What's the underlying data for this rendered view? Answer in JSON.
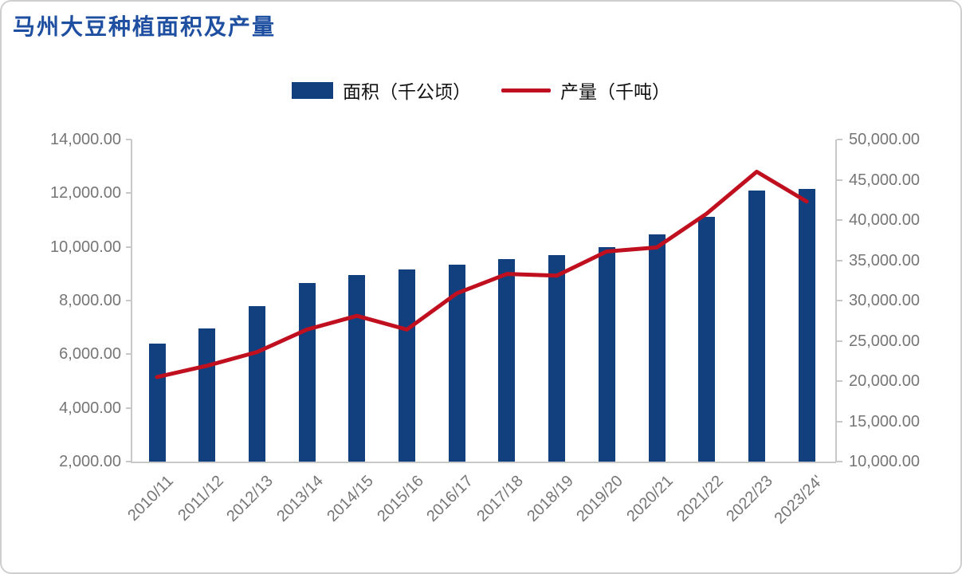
{
  "chart_data": {
    "type": "bar+line",
    "title": "马州大豆种植面积及产量",
    "title_color": "#1E4FA0",
    "categories": [
      "2010/11",
      "2011/12",
      "2012/13",
      "2013/14",
      "2014/15",
      "2015/16",
      "2016/17",
      "2017/18",
      "2018/19",
      "2019/20",
      "2020/21",
      "2021/22",
      "2022/23",
      "2023/24'"
    ],
    "series": [
      {
        "name": "面积（千公顷）",
        "type": "bar",
        "axis": "left",
        "color": "#12407E",
        "values": [
          6400,
          6950,
          7800,
          8650,
          8950,
          9150,
          9330,
          9550,
          9700,
          10000,
          10480,
          11120,
          12100,
          12160
        ]
      },
      {
        "name": "产量（千吨）",
        "type": "line",
        "axis": "right",
        "color": "#C00F1F",
        "values": [
          20500,
          21900,
          23600,
          26400,
          28100,
          26400,
          30900,
          33300,
          33100,
          36100,
          36600,
          40800,
          46000,
          42300
        ]
      }
    ],
    "left_axis": {
      "min": 2000,
      "max": 14000,
      "step": 2000,
      "tick_labels": [
        "2,000.00",
        "4,000.00",
        "6,000.00",
        "8,000.00",
        "10,000.00",
        "12,000.00",
        "14,000.00"
      ]
    },
    "right_axis": {
      "min": 10000,
      "max": 50000,
      "step": 5000,
      "tick_labels": [
        "10,000.00",
        "15,000.00",
        "20,000.00",
        "25,000.00",
        "30,000.00",
        "35,000.00",
        "40,000.00",
        "45,000.00",
        "50,000.00"
      ]
    },
    "grid": false,
    "legend_position": "top-center",
    "axis_text_color": "#767676",
    "axis_line_color": "#C8C8C8",
    "x_label_rotation_deg": -45
  }
}
